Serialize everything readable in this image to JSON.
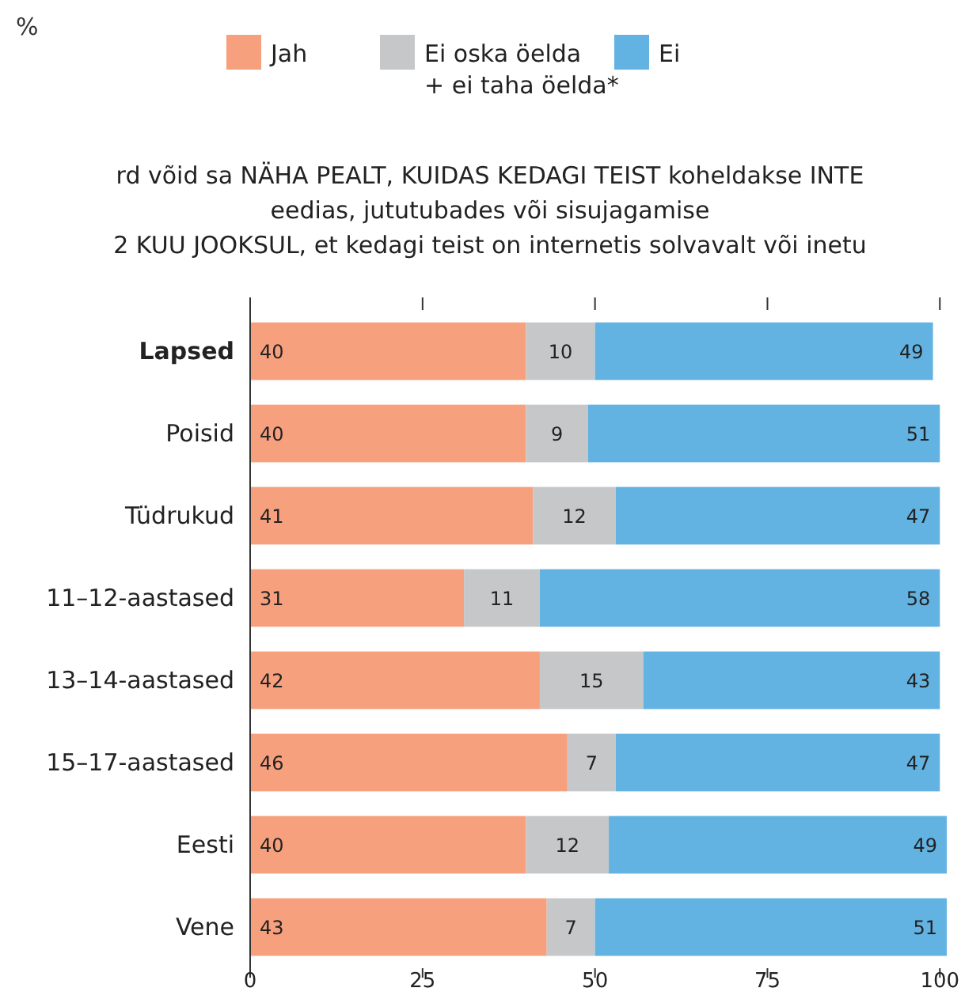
{
  "chart_data": {
    "type": "bar",
    "orientation": "horizontal",
    "stacked": true,
    "data_labels": true,
    "legend": "top",
    "title": "rd võid sa NÄHA PEALT, KUIDAS KEDAGI TEIST koheldakse INTE\needias, jututubades või sisujagamise\n2 KUU JOOKSUL, et kedagi teist on internetis solvavalt või inetu",
    "annotations": [
      "%"
    ],
    "categories": [
      "Lapsed",
      "Poisid",
      "Tüdrukud",
      "11–12-aastased",
      "13–14-aastased",
      "15–17-aastased",
      "Eesti",
      "Vene"
    ],
    "series": [
      {
        "name": "Jah",
        "color": "#f7a07e",
        "values": [
          40,
          40,
          41,
          31,
          42,
          46,
          40,
          43
        ]
      },
      {
        "name": "Ei oska öelda\n+ ei taha öelda*",
        "color": "#c6c7c9",
        "values": [
          10,
          9,
          12,
          11,
          15,
          7,
          12,
          7
        ]
      },
      {
        "name": "Ei",
        "color": "#62b2e2",
        "values": [
          49,
          51,
          47,
          58,
          43,
          47,
          49,
          51
        ]
      }
    ],
    "xlim": [
      0,
      101
    ],
    "xticks": [
      0,
      25,
      50,
      75,
      100
    ]
  }
}
